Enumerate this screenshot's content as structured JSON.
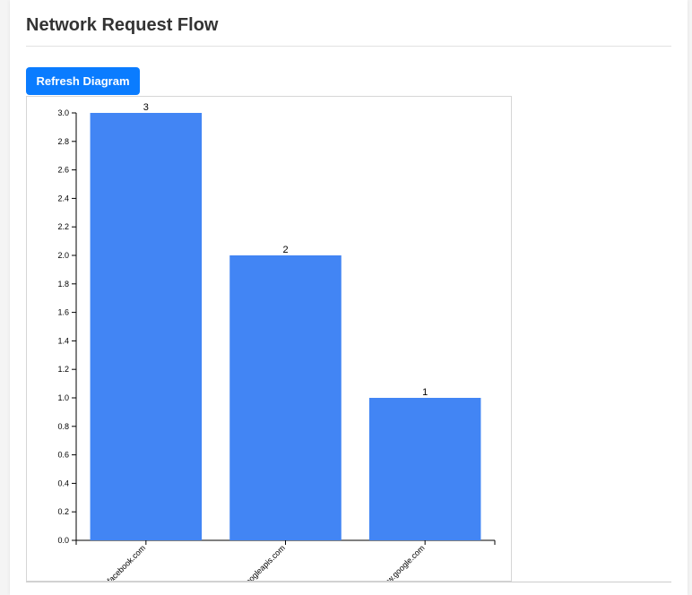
{
  "page": {
    "title": "Network Request Flow"
  },
  "toolbar": {
    "refresh_label": "Refresh Diagram"
  },
  "colors": {
    "bar": "#4285f4",
    "button": "#0a7cff"
  },
  "chart_data": {
    "type": "bar",
    "categories": [
      "facebook.com",
      "googleapis.com",
      "www.google.com"
    ],
    "values": [
      3,
      2,
      1
    ],
    "ylim": [
      0,
      3.0
    ],
    "yticks": [
      "0.0",
      "0.2",
      "0.4",
      "0.6",
      "0.8",
      "1.0",
      "1.2",
      "1.4",
      "1.6",
      "1.8",
      "2.0",
      "2.2",
      "2.4",
      "2.6",
      "2.8",
      "3.0"
    ],
    "data_labels": [
      "3",
      "2",
      "1"
    ],
    "grid": false,
    "legend": "none"
  }
}
